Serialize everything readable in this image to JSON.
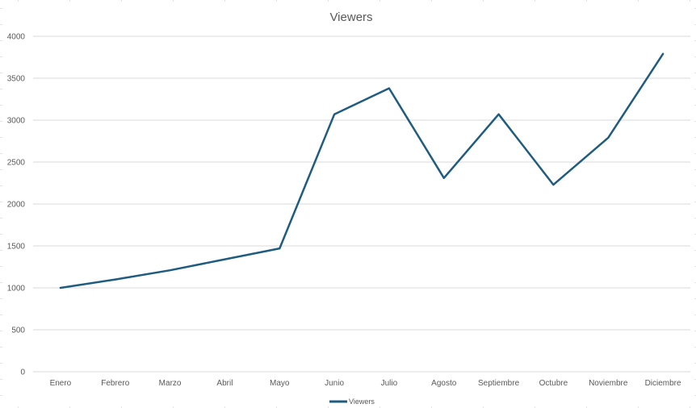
{
  "chart_data": {
    "type": "line",
    "title": "Viewers",
    "xlabel": "",
    "ylabel": "",
    "categories": [
      "Enero",
      "Febrero",
      "Marzo",
      "Abril",
      "Mayo",
      "Junio",
      "Julio",
      "Agosto",
      "Septiembre",
      "Octubre",
      "Noviembre",
      "Diciembre"
    ],
    "series": [
      {
        "name": "Viewers",
        "color": "#1f5c7f",
        "values": [
          1000,
          1100,
          1210,
          1340,
          1470,
          3070,
          3380,
          2310,
          3070,
          2230,
          2790,
          3790
        ]
      }
    ],
    "ylim": [
      0,
      4000
    ],
    "yticks": [
      "0",
      "500",
      "1000",
      "1500",
      "2000",
      "2500",
      "3000",
      "3500",
      "4000"
    ],
    "grid": true,
    "legend_position": "bottom"
  }
}
